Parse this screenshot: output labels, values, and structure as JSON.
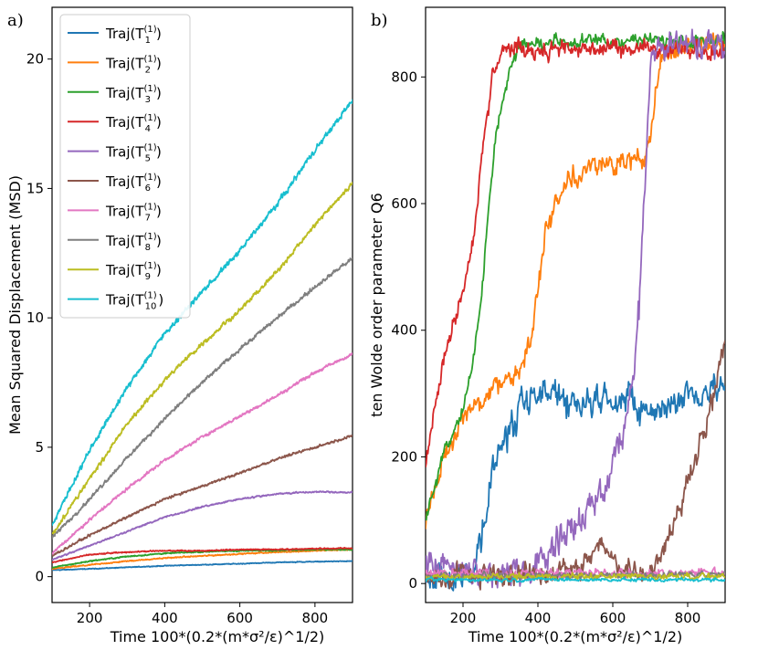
{
  "chart_data": [
    {
      "panel": "a)",
      "type": "line",
      "xlabel": "Time 100*(0.2*(m*σ²/ε)^1/2)",
      "ylabel": "Mean Squared Displacement (MSD)",
      "xlim": [
        100,
        900
      ],
      "ylim": [
        -1.0,
        22.0
      ],
      "xticks": [
        200,
        400,
        600,
        800
      ],
      "yticks": [
        0,
        5,
        10,
        15,
        20
      ],
      "legend_position": "top-left",
      "x": [
        100,
        200,
        300,
        400,
        500,
        600,
        700,
        800,
        900
      ],
      "series": [
        {
          "name": "Traj(T1(1))",
          "base": "Traj(T",
          "sub": "1",
          "sup": "(1)",
          "color": "#1f77b4",
          "noise": 0.02,
          "values": [
            0.25,
            0.3,
            0.36,
            0.42,
            0.46,
            0.5,
            0.55,
            0.58,
            0.6
          ]
        },
        {
          "name": "Traj(T2(1))",
          "base": "Traj(T",
          "sub": "2",
          "sup": "(1)",
          "color": "#ff7f0e",
          "noise": 0.03,
          "values": [
            0.3,
            0.45,
            0.6,
            0.72,
            0.8,
            0.88,
            0.95,
            1.0,
            1.05
          ]
        },
        {
          "name": "Traj(T3(1))",
          "base": "Traj(T",
          "sub": "3",
          "sup": "(1)",
          "color": "#2ca02c",
          "noise": 0.03,
          "values": [
            0.35,
            0.6,
            0.78,
            0.9,
            0.96,
            1.0,
            1.02,
            1.05,
            1.05
          ]
        },
        {
          "name": "Traj(T4(1))",
          "base": "Traj(T",
          "sub": "4",
          "sup": "(1)",
          "color": "#d62728",
          "noise": 0.03,
          "values": [
            0.55,
            0.85,
            0.95,
            1.0,
            1.0,
            1.05,
            1.05,
            1.08,
            1.1
          ]
        },
        {
          "name": "Traj(T5(1))",
          "base": "Traj(T",
          "sub": "5",
          "sup": "(1)",
          "color": "#9467bd",
          "noise": 0.04,
          "values": [
            0.65,
            1.2,
            1.75,
            2.3,
            2.7,
            3.0,
            3.2,
            3.28,
            3.25
          ]
        },
        {
          "name": "Traj(T6(1))",
          "base": "Traj(T",
          "sub": "6",
          "sup": "(1)",
          "color": "#8c564b",
          "noise": 0.06,
          "values": [
            0.8,
            1.6,
            2.3,
            3.0,
            3.5,
            4.0,
            4.55,
            5.0,
            5.45
          ]
        },
        {
          "name": "Traj(T7(1))",
          "base": "Traj(T",
          "sub": "7",
          "sup": "(1)",
          "color": "#e377c2",
          "noise": 0.08,
          "values": [
            0.9,
            2.2,
            3.4,
            4.5,
            5.4,
            6.2,
            7.0,
            7.9,
            8.6
          ]
        },
        {
          "name": "Traj(T8(1))",
          "base": "Traj(T",
          "sub": "8",
          "sup": "(1)",
          "color": "#7f7f7f",
          "noise": 0.1,
          "values": [
            1.5,
            3.0,
            4.6,
            6.1,
            7.5,
            8.8,
            10.0,
            11.2,
            12.3
          ]
        },
        {
          "name": "Traj(T9(1))",
          "base": "Traj(T",
          "sub": "9",
          "sup": "(1)",
          "color": "#bcbd22",
          "noise": 0.12,
          "values": [
            1.6,
            3.8,
            5.9,
            7.6,
            9.0,
            10.3,
            11.8,
            13.6,
            15.2
          ]
        },
        {
          "name": "Traj(T10(1))",
          "base": "Traj(T",
          "sub": "10",
          "sup": "(1)",
          "color": "#17becf",
          "noise": 0.14,
          "values": [
            2.0,
            4.9,
            7.3,
            9.4,
            11.0,
            12.6,
            14.4,
            16.5,
            18.4
          ]
        }
      ]
    },
    {
      "panel": "b)",
      "type": "line",
      "xlabel": "Time 100*(0.2*(m*σ²/ε)^1/2)",
      "ylabel": "ten Wolde order parameter Q6",
      "xlim": [
        100,
        900
      ],
      "ylim": [
        -30,
        910
      ],
      "xticks": [
        200,
        400,
        600,
        800
      ],
      "yticks": [
        0,
        200,
        400,
        600,
        800
      ],
      "series": [
        {
          "name": "Traj(T1(1))",
          "color": "#1f77b4",
          "noise": 35,
          "x": [
            100,
            160,
            200,
            230,
            260,
            300,
            340,
            380,
            420,
            460,
            500,
            600,
            700,
            800,
            900
          ],
          "values": [
            10,
            15,
            10,
            30,
            120,
            220,
            260,
            280,
            300,
            300,
            280,
            300,
            270,
            300,
            310
          ]
        },
        {
          "name": "Traj(T2(1))",
          "color": "#ff7f0e",
          "noise": 25,
          "x": [
            100,
            150,
            200,
            250,
            300,
            330,
            360,
            380,
            400,
            420,
            440,
            480,
            550,
            600,
            680,
            700,
            730,
            800,
            900
          ],
          "values": [
            90,
            200,
            260,
            290,
            320,
            330,
            350,
            380,
            460,
            560,
            590,
            640,
            660,
            660,
            670,
            720,
            830,
            850,
            860
          ]
        },
        {
          "name": "Traj(T3(1))",
          "color": "#2ca02c",
          "noise": 15,
          "x": [
            100,
            150,
            200,
            230,
            250,
            270,
            290,
            320,
            350,
            400,
            900
          ],
          "values": [
            100,
            210,
            280,
            360,
            460,
            600,
            720,
            800,
            850,
            855,
            860
          ]
        },
        {
          "name": "Traj(T4(1))",
          "color": "#d62728",
          "noise": 20,
          "x": [
            100,
            130,
            160,
            200,
            230,
            260,
            280,
            300,
            330,
            900
          ],
          "values": [
            175,
            300,
            390,
            460,
            560,
            720,
            800,
            840,
            845,
            840
          ]
        },
        {
          "name": "Traj(T5(1))",
          "color": "#9467bd",
          "noise": 35,
          "x": [
            100,
            200,
            300,
            400,
            450,
            520,
            580,
            620,
            650,
            670,
            700,
            720,
            800,
            900
          ],
          "values": [
            30,
            20,
            10,
            30,
            70,
            110,
            150,
            230,
            300,
            420,
            820,
            845,
            850,
            850
          ]
        },
        {
          "name": "Traj(T6(1))",
          "color": "#8c564b",
          "noise": 25,
          "x": [
            100,
            400,
            450,
            520,
            560,
            600,
            640,
            700,
            740,
            780,
            820,
            860,
            900
          ],
          "values": [
            10,
            15,
            20,
            25,
            60,
            40,
            25,
            20,
            60,
            120,
            200,
            270,
            380
          ]
        },
        {
          "name": "Traj(T7(1))",
          "color": "#e377c2",
          "noise": 10,
          "x": [
            100,
            900
          ],
          "values": [
            15,
            18
          ]
        },
        {
          "name": "Traj(T8(1))",
          "color": "#7f7f7f",
          "noise": 7,
          "x": [
            100,
            900
          ],
          "values": [
            12,
            14
          ]
        },
        {
          "name": "Traj(T9(1))",
          "color": "#bcbd22",
          "noise": 7,
          "x": [
            100,
            900
          ],
          "values": [
            10,
            12
          ]
        },
        {
          "name": "Traj(T10(1))",
          "color": "#17becf",
          "noise": 4,
          "x": [
            100,
            900
          ],
          "values": [
            6,
            6
          ]
        }
      ]
    }
  ]
}
